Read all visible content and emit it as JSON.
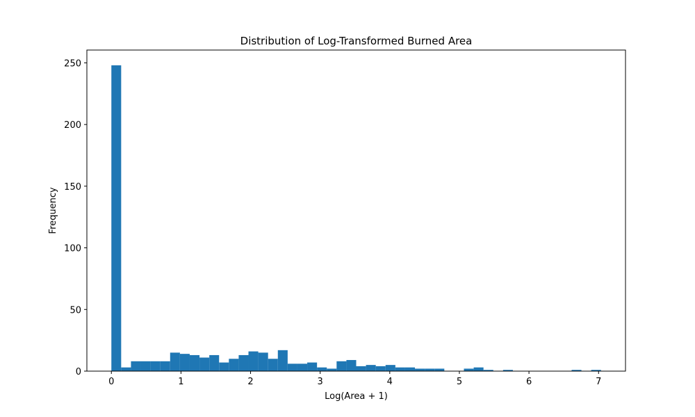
{
  "chart_data": {
    "type": "bar",
    "title": "Distribution of Log-Transformed Burned Area",
    "xlabel": "Log(Area + 1)",
    "ylabel": "Frequency",
    "xlim": [
      -0.352,
      7.387
    ],
    "ylim": [
      0,
      260.4
    ],
    "xticks": [
      0,
      1,
      2,
      3,
      4,
      5,
      6,
      7
    ],
    "yticks": [
      0,
      50,
      100,
      150,
      200,
      250
    ],
    "bin_start": 0,
    "bin_width": 0.1407,
    "color": "#1f77b4",
    "grid": false,
    "values": [
      248,
      3,
      8,
      8,
      8,
      8,
      15,
      14,
      13,
      11,
      13,
      7,
      10,
      13,
      16,
      15,
      10,
      17,
      6,
      6,
      7,
      3,
      2,
      8,
      9,
      4,
      5,
      4,
      5,
      3,
      3,
      2,
      2,
      2,
      0,
      0,
      2,
      3,
      1,
      0,
      1,
      0,
      0,
      0,
      0,
      0,
      0,
      1,
      0,
      1
    ]
  }
}
